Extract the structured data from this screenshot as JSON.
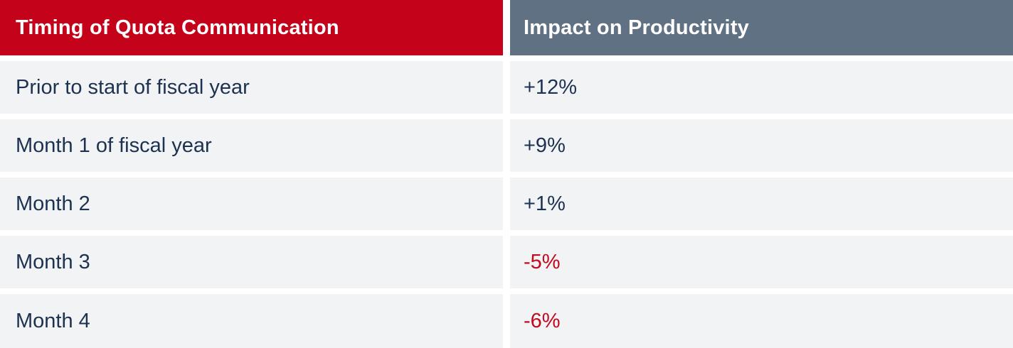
{
  "colors": {
    "header_left_bg": "#c4031a",
    "header_right_bg": "#607184",
    "row_bg": "#f2f3f5",
    "text_navy": "#1d3150",
    "negative_red": "#c00a1e"
  },
  "table": {
    "headers": [
      {
        "label": "Timing of Quota Communication"
      },
      {
        "label": "Impact on Productivity"
      }
    ],
    "rows": [
      {
        "timing": "Prior to start of fiscal year",
        "impact": "+12%",
        "trend": "positive"
      },
      {
        "timing": "Month 1 of fiscal year",
        "impact": "+9%",
        "trend": "positive"
      },
      {
        "timing": "Month 2",
        "impact": "+1%",
        "trend": "positive"
      },
      {
        "timing": "Month 3",
        "impact": "-5%",
        "trend": "negative"
      },
      {
        "timing": "Month 4",
        "impact": "-6%",
        "trend": "negative"
      }
    ]
  },
  "chart_data": {
    "type": "table",
    "title": "",
    "columns": [
      "Timing of Quota Communication",
      "Impact on Productivity"
    ],
    "rows": [
      [
        "Prior to start of fiscal year",
        "+12%"
      ],
      [
        "Month 1 of fiscal year",
        "+9%"
      ],
      [
        "Month 2",
        "+1%"
      ],
      [
        "Month 3",
        "-5%"
      ],
      [
        "Month 4",
        "-6%"
      ]
    ],
    "impact_values_percent": [
      12,
      9,
      1,
      -5,
      -6
    ]
  }
}
